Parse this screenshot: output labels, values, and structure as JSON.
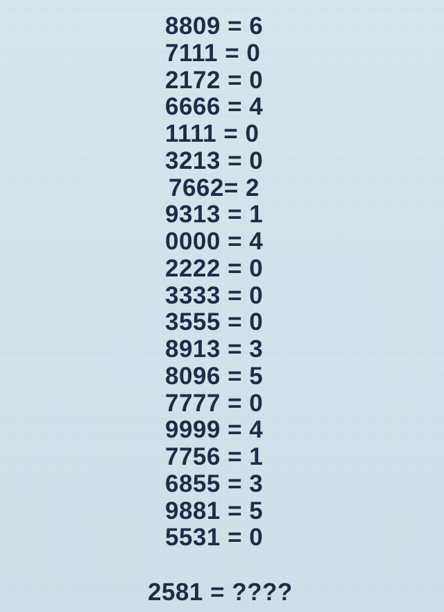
{
  "equations": [
    "8809 = 6",
    "7111 = 0",
    "2172 = 0",
    "6666 = 4",
    "1111 = 0",
    "3213 = 0",
    "7662= 2",
    "9313 = 1",
    "0000 = 4",
    "2222 = 0",
    "3333 = 0",
    "3555 = 0",
    "8913 = 3",
    "8096 = 5",
    "7777 = 0",
    "9999 = 4",
    "7756 = 1",
    "6855 = 3",
    "9881 = 5",
    "5531 = 0"
  ],
  "question": "2581 = ????",
  "colors": {
    "background": "#d2e2ea",
    "text": "#1f2c47"
  }
}
